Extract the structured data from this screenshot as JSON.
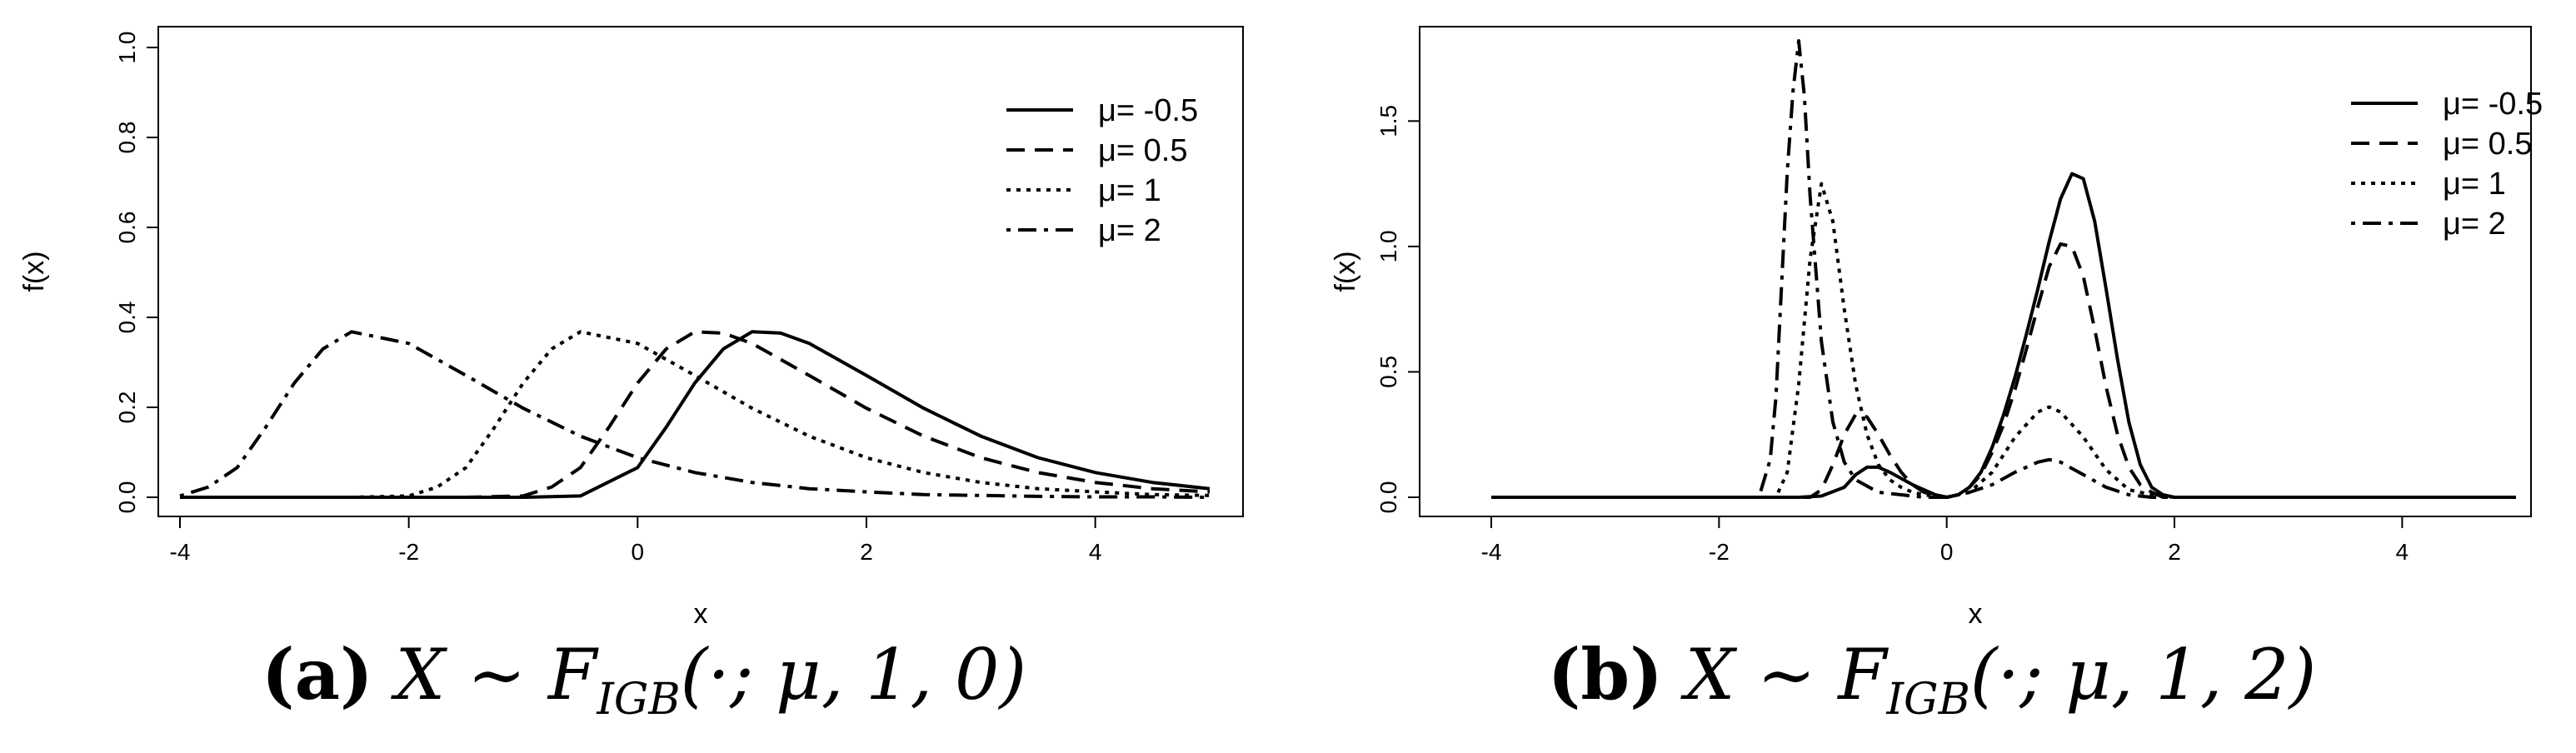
{
  "chart_data": [
    {
      "type": "line",
      "xlabel": "x",
      "ylabel": "f(x)",
      "xlim": [
        -4,
        5
      ],
      "ylim": [
        0,
        1.0
      ],
      "xticks": [
        "-4",
        "-2",
        "0",
        "2",
        "4"
      ],
      "yticks": [
        "0.0",
        "0.2",
        "0.4",
        "0.6",
        "0.8",
        "1.0"
      ],
      "legend_position": "top-right",
      "caption": {
        "letter": "(a)",
        "formula_main": "X ∼ F",
        "formula_sub": "IGB",
        "formula_args": "(·; μ, 1, 0)"
      },
      "series": [
        {
          "name": "μ= -0.5",
          "dash": "solid",
          "x": [
            -4,
            -3.5,
            -3,
            -2.5,
            -2,
            -1.5,
            -1,
            -0.5,
            0,
            0.25,
            0.5,
            0.75,
            1,
            1.25,
            1.5,
            2,
            2.5,
            3,
            3.5,
            4,
            4.5,
            5
          ],
          "values": [
            0,
            0,
            0,
            0,
            0,
            0,
            0,
            0.003,
            0.066,
            0.156,
            0.254,
            0.33,
            0.368,
            0.365,
            0.342,
            0.271,
            0.198,
            0.136,
            0.088,
            0.055,
            0.033,
            0.019
          ]
        },
        {
          "name": "μ=  0.5",
          "dash": "dashed",
          "x": [
            -4,
            -3.5,
            -3,
            -2.5,
            -2,
            -1.5,
            -1,
            -0.75,
            -0.5,
            -0.25,
            0,
            0.25,
            0.5,
            0.75,
            1,
            1.5,
            2,
            2.5,
            3,
            3.5,
            4,
            4.5,
            5
          ],
          "values": [
            0,
            0,
            0,
            0,
            0,
            0,
            0.003,
            0.023,
            0.066,
            0.156,
            0.254,
            0.33,
            0.368,
            0.365,
            0.342,
            0.271,
            0.198,
            0.136,
            0.088,
            0.055,
            0.033,
            0.019,
            0.012
          ]
        },
        {
          "name": "μ= 1",
          "dash": "dotted",
          "x": [
            -4,
            -3.5,
            -3,
            -2.5,
            -2,
            -1.75,
            -1.5,
            -1.25,
            -1,
            -0.75,
            -0.5,
            0,
            0.5,
            1,
            1.5,
            2,
            2.5,
            3,
            3.5,
            4,
            4.5,
            5
          ],
          "values": [
            0,
            0,
            0,
            0,
            0.003,
            0.023,
            0.066,
            0.156,
            0.254,
            0.33,
            0.368,
            0.342,
            0.271,
            0.198,
            0.136,
            0.088,
            0.055,
            0.033,
            0.019,
            0.012,
            0.006,
            0.004
          ]
        },
        {
          "name": "μ= 2",
          "dash": "dotdash",
          "x": [
            -4,
            -3.75,
            -3.5,
            -3.25,
            -3,
            -2.75,
            -2.5,
            -2,
            -1.5,
            -1,
            -0.5,
            0,
            0.5,
            1,
            1.5,
            2,
            2.5,
            3,
            3.5,
            4,
            4.5,
            5
          ],
          "values": [
            0.003,
            0.023,
            0.066,
            0.156,
            0.254,
            0.33,
            0.368,
            0.342,
            0.271,
            0.198,
            0.136,
            0.088,
            0.055,
            0.033,
            0.019,
            0.012,
            0.006,
            0.004,
            0.002,
            0.001,
            0.001,
            0
          ]
        }
      ]
    },
    {
      "type": "line",
      "xlabel": "x",
      "ylabel": "f(x)",
      "xlim": [
        -4,
        5
      ],
      "ylim": [
        0,
        1.8
      ],
      "xticks": [
        "-4",
        "-2",
        "0",
        "2",
        "4"
      ],
      "yticks": [
        "0.0",
        "0.5",
        "1.0",
        "1.5"
      ],
      "legend_position": "top-right",
      "caption": {
        "letter": "(b)",
        "formula_main": "X ∼ F",
        "formula_sub": "IGB",
        "formula_args": "(·; μ, 1, 2)"
      },
      "series": [
        {
          "name": "μ= -0.5",
          "dash": "solid",
          "x": [
            -4,
            -1.3,
            -1.1,
            -0.9,
            -0.8,
            -0.7,
            -0.6,
            -0.5,
            -0.4,
            -0.3,
            -0.2,
            -0.1,
            0,
            0.1,
            0.2,
            0.3,
            0.4,
            0.5,
            0.6,
            0.7,
            0.8,
            0.9,
            1,
            1.1,
            1.2,
            1.3,
            1.4,
            1.5,
            1.6,
            1.7,
            1.8,
            1.9,
            2,
            5
          ],
          "values": [
            0,
            0,
            0.005,
            0.04,
            0.09,
            0.12,
            0.12,
            0.1,
            0.075,
            0.05,
            0.03,
            0.01,
            0,
            0.01,
            0.04,
            0.1,
            0.2,
            0.33,
            0.48,
            0.65,
            0.83,
            1.02,
            1.19,
            1.29,
            1.27,
            1.1,
            0.83,
            0.55,
            0.3,
            0.13,
            0.04,
            0.01,
            0,
            0
          ]
        },
        {
          "name": "μ=  0.5",
          "dash": "dashed",
          "x": [
            -4,
            -1.2,
            -1.1,
            -1.0,
            -0.9,
            -0.8,
            -0.7,
            -0.6,
            -0.5,
            -0.4,
            -0.3,
            -0.2,
            -0.1,
            0,
            0.1,
            0.2,
            0.3,
            0.4,
            0.5,
            0.6,
            0.7,
            0.8,
            0.9,
            1,
            1.1,
            1.2,
            1.3,
            1.4,
            1.5,
            1.6,
            1.7,
            1.8,
            1.9,
            5
          ],
          "values": [
            0,
            0,
            0.03,
            0.13,
            0.25,
            0.33,
            0.32,
            0.25,
            0.17,
            0.1,
            0.05,
            0.02,
            0.01,
            0,
            0.01,
            0.04,
            0.09,
            0.18,
            0.29,
            0.43,
            0.59,
            0.76,
            0.92,
            1.01,
            1.0,
            0.88,
            0.67,
            0.44,
            0.25,
            0.12,
            0.05,
            0.02,
            0,
            0
          ]
        },
        {
          "name": "μ= 1",
          "dash": "dotted",
          "x": [
            -4,
            -1.5,
            -1.4,
            -1.3,
            -1.2,
            -1.1,
            -1.0,
            -0.9,
            -0.8,
            -0.7,
            -0.6,
            -0.5,
            -0.4,
            -0.3,
            -0.2,
            -0.1,
            0,
            0.2,
            0.4,
            0.6,
            0.8,
            0.9,
            1.0,
            1.2,
            1.4,
            1.6,
            1.8,
            2.0,
            5
          ],
          "values": [
            0,
            0,
            0.1,
            0.45,
            0.95,
            1.25,
            1.1,
            0.75,
            0.45,
            0.25,
            0.13,
            0.07,
            0.04,
            0.02,
            0.01,
            0.005,
            0,
            0.02,
            0.1,
            0.24,
            0.34,
            0.36,
            0.34,
            0.24,
            0.11,
            0.03,
            0.01,
            0,
            0
          ]
        },
        {
          "name": "μ= 2",
          "dash": "dotdash",
          "x": [
            -4,
            -1.65,
            -1.55,
            -1.5,
            -1.45,
            -1.4,
            -1.35,
            -1.3,
            -1.25,
            -1.2,
            -1.1,
            -1.0,
            -0.9,
            -0.8,
            -0.6,
            -0.4,
            -0.2,
            0,
            0.2,
            0.4,
            0.6,
            0.8,
            0.9,
            1.0,
            1.2,
            1.4,
            1.6,
            1.8,
            5
          ],
          "values": [
            0,
            0,
            0.15,
            0.4,
            0.85,
            1.3,
            1.62,
            1.82,
            1.6,
            1.2,
            0.62,
            0.3,
            0.14,
            0.07,
            0.02,
            0.01,
            0,
            0,
            0.02,
            0.05,
            0.1,
            0.14,
            0.15,
            0.14,
            0.09,
            0.04,
            0.01,
            0,
            0
          ]
        }
      ]
    }
  ]
}
